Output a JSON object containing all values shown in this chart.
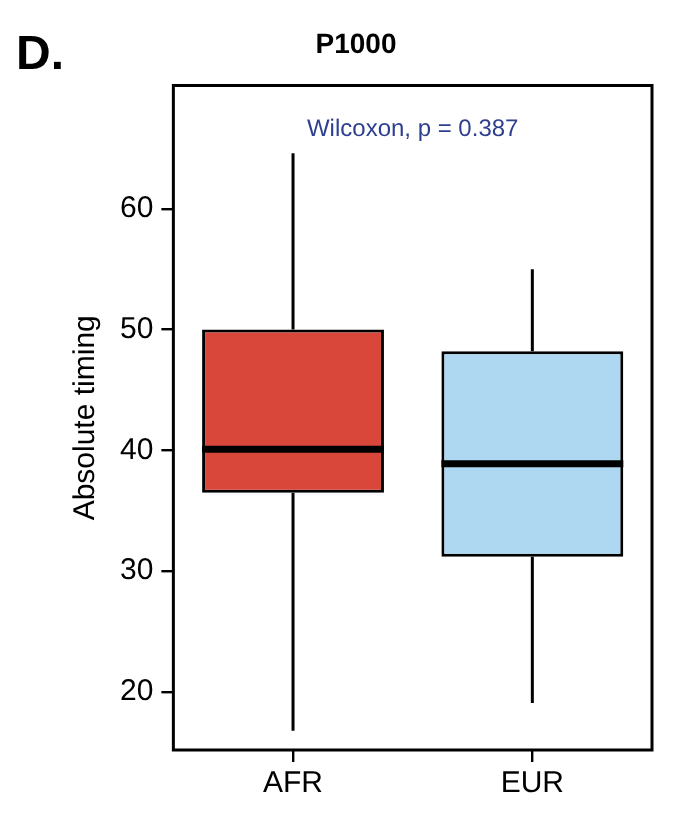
{
  "chart_data": {
    "type": "box",
    "title": "P1000",
    "ylabel": "Absolute timing",
    "annotations": [
      "D.",
      "Wilcoxon, p = 0.387"
    ],
    "categories": [
      "AFR",
      "EUR"
    ],
    "colors": [
      "#d9463a",
      "#aed8f1"
    ],
    "boxes": [
      {
        "low": 16.8,
        "q1": 36.5,
        "median": 40.1,
        "q3": 50.0,
        "high": 64.6
      },
      {
        "low": 19.1,
        "q1": 31.2,
        "median": 38.9,
        "q3": 48.2,
        "high": 55.0
      }
    ],
    "ylim": [
      15.2,
      70.2
    ],
    "yticks": [
      20,
      30,
      40,
      50,
      60
    ],
    "grid": false,
    "legend": false
  }
}
